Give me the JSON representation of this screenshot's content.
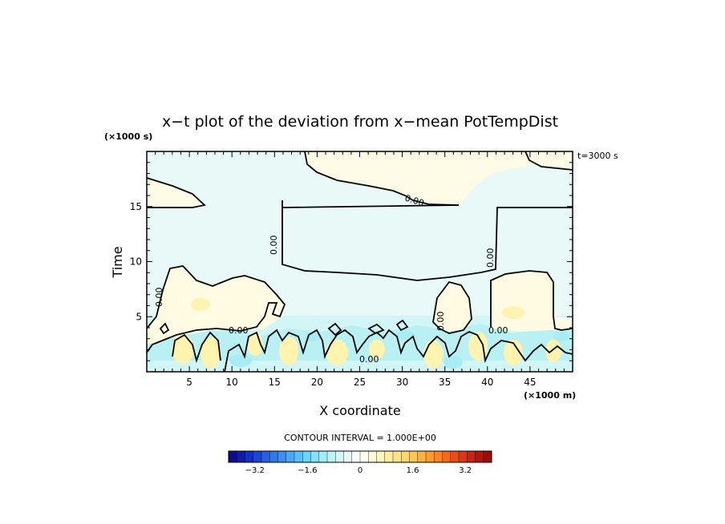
{
  "chart_data": {
    "type": "heatmap",
    "title": "x−t plot of the deviation from x−mean PotTempDist",
    "xlabel": "X coordinate",
    "ylabel": "Time",
    "x_unit": "(×1000 m)",
    "y_unit": "(×1000 s)",
    "time_note": "t=3000 s",
    "xlim": [
      0,
      50
    ],
    "ylim": [
      0,
      20
    ],
    "x_ticks": [
      "5",
      "10",
      "15",
      "20",
      "25",
      "30",
      "35",
      "40",
      "45"
    ],
    "y_ticks": [
      "5",
      "10",
      "15"
    ],
    "contour_interval_text": "CONTOUR INTERVAL = 1.000E+00",
    "contour_labels": [
      "0.00",
      "0.00",
      "0.00",
      "0.00",
      "0.00",
      "0.00",
      "0.00",
      "0.00"
    ],
    "colorbar": {
      "range": [
        -4,
        4
      ],
      "ticks": [
        "−3.2",
        "−1.6",
        "0",
        "1.6",
        "3.2"
      ],
      "tick_values": [
        -3.2,
        -1.6,
        0,
        1.6,
        3.2
      ],
      "colors": [
        "#0c0c8c",
        "#0f1ea6",
        "#1330c0",
        "#1a46d6",
        "#2560e6",
        "#2e78f0",
        "#3a90f6",
        "#48a8fa",
        "#58c0fc",
        "#6cd4fc",
        "#86e2fb",
        "#a2ecf8",
        "#bcf3f6",
        "#d2f8f7",
        "#e6fbf8",
        "#f6fefb",
        "#fffff0",
        "#fffbd8",
        "#fff5bc",
        "#ffeda0",
        "#ffe384",
        "#ffd66a",
        "#ffc652",
        "#ffb23e",
        "#ff9c30",
        "#fc8424",
        "#f46a1c",
        "#ea5016",
        "#dc3812",
        "#cc2410",
        "#b8140e",
        "#a00a0c"
      ]
    }
  }
}
